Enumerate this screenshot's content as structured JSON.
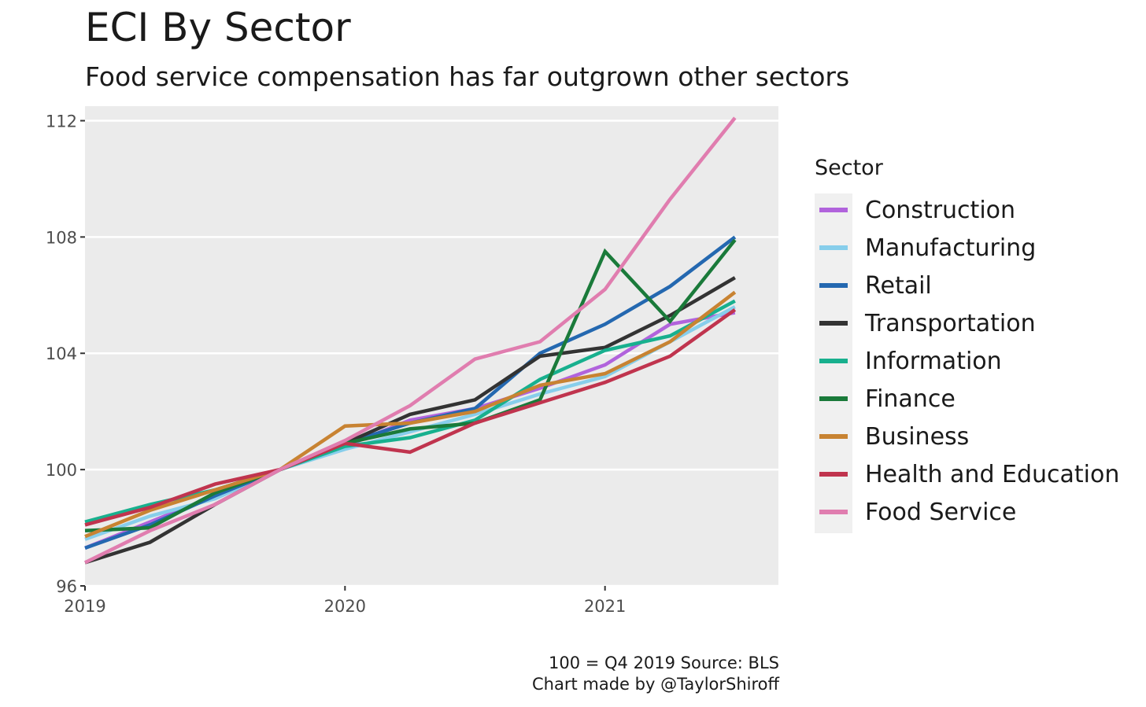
{
  "chart_data": {
    "type": "line",
    "title": "ECI By Sector",
    "subtitle": "Food service compensation has far outgrown other sectors",
    "xlabel": "",
    "ylabel": "",
    "x": [
      2019.0,
      2019.25,
      2019.5,
      2019.75,
      2020.0,
      2020.25,
      2020.5,
      2020.75,
      2021.0,
      2021.25,
      2021.5
    ],
    "xlim": [
      2019.0,
      2021.667
    ],
    "ylim": [
      96,
      112.5
    ],
    "x_ticks": [
      2019,
      2020,
      2021
    ],
    "x_tick_labels": [
      "2019",
      "2020",
      "2021"
    ],
    "y_ticks": [
      96,
      100,
      104,
      108,
      112
    ],
    "y_tick_labels": [
      "96",
      "100",
      "104",
      "108",
      "112"
    ],
    "grid": true,
    "legend_title": "Sector",
    "legend_position": "right",
    "series": [
      {
        "name": "Construction",
        "color": "#b163dc",
        "values": [
          97.3,
          98.2,
          99.1,
          100.0,
          100.8,
          101.7,
          102.1,
          102.8,
          103.6,
          105.0,
          105.4
        ]
      },
      {
        "name": "Manufacturing",
        "color": "#87ceeb",
        "values": [
          97.6,
          98.4,
          99.0,
          100.0,
          100.7,
          101.3,
          101.9,
          102.6,
          103.2,
          104.4,
          105.6
        ]
      },
      {
        "name": "Retail",
        "color": "#2468b0",
        "values": [
          97.3,
          98.1,
          99.1,
          100.0,
          100.9,
          101.6,
          102.1,
          104.0,
          105.0,
          106.3,
          108.0
        ]
      },
      {
        "name": "Transportation",
        "color": "#333333",
        "values": [
          96.8,
          97.5,
          98.8,
          100.0,
          100.9,
          101.9,
          102.4,
          103.9,
          104.2,
          105.3,
          106.6
        ]
      },
      {
        "name": "Information",
        "color": "#18b08e",
        "values": [
          98.2,
          98.8,
          99.3,
          100.0,
          100.8,
          101.1,
          101.7,
          103.1,
          104.1,
          104.6,
          105.8
        ]
      },
      {
        "name": "Finance",
        "color": "#1a7a3a",
        "values": [
          97.9,
          98.0,
          99.2,
          100.0,
          100.9,
          101.4,
          101.6,
          102.4,
          107.5,
          105.1,
          107.9
        ]
      },
      {
        "name": "Business",
        "color": "#c88332",
        "values": [
          97.7,
          98.6,
          99.3,
          100.0,
          101.5,
          101.6,
          102.0,
          102.9,
          103.3,
          104.4,
          106.1
        ]
      },
      {
        "name": "Health and Education",
        "color": "#c0344e",
        "values": [
          98.1,
          98.7,
          99.5,
          100.0,
          100.9,
          100.6,
          101.6,
          102.3,
          103.0,
          103.9,
          105.5
        ]
      },
      {
        "name": "Food Service",
        "color": "#e07daf",
        "values": [
          96.8,
          97.9,
          98.8,
          100.0,
          101.0,
          102.2,
          103.8,
          104.4,
          106.2,
          109.3,
          112.1
        ]
      }
    ],
    "caption": [
      "100 = Q4 2019 Source: BLS",
      "Chart made by @TaylorShiroff"
    ]
  }
}
